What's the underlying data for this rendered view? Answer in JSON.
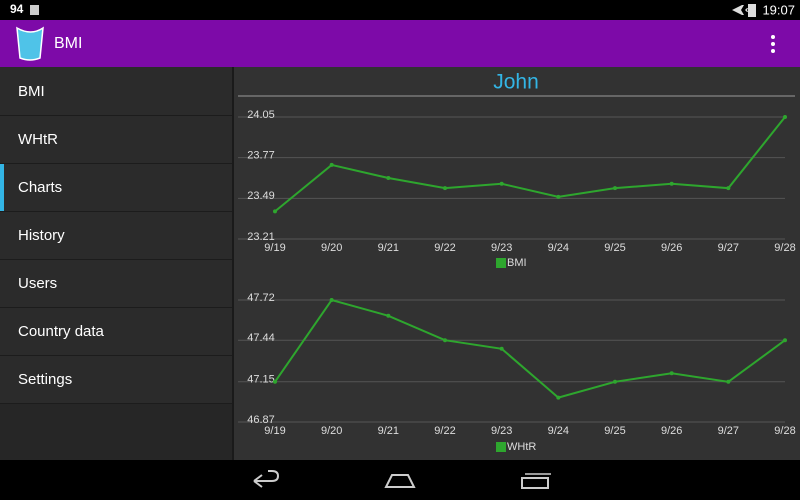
{
  "status_bar": {
    "left": "94",
    "time": "19:07"
  },
  "app_bar": {
    "title": "BMI"
  },
  "menu": {
    "items": [
      "BMI",
      "WHtR",
      "Charts",
      "History",
      "Users",
      "Country data",
      "Settings"
    ],
    "selected": 2
  },
  "header": {
    "user": "John"
  },
  "chart_data": [
    {
      "type": "line",
      "categories": [
        "9/19",
        "9/20",
        "9/21",
        "9/22",
        "9/23",
        "9/24",
        "9/25",
        "9/26",
        "9/27",
        "9/28"
      ],
      "series": [
        {
          "name": "BMI",
          "color": "#2ea62e",
          "values": [
            23.4,
            23.72,
            23.63,
            23.56,
            23.59,
            23.5,
            23.56,
            23.59,
            23.56,
            24.05
          ]
        }
      ],
      "ylim": [
        23.21,
        24.05
      ],
      "yticks": [
        23.21,
        23.49,
        23.77,
        24.05
      ],
      "grid": true
    },
    {
      "type": "line",
      "categories": [
        "9/19",
        "9/20",
        "9/21",
        "9/22",
        "9/23",
        "9/24",
        "9/25",
        "9/26",
        "9/27",
        "9/28"
      ],
      "series": [
        {
          "name": "WHtR",
          "color": "#2ea62e",
          "values": [
            47.15,
            47.72,
            47.61,
            47.44,
            47.38,
            47.04,
            47.15,
            47.21,
            47.15,
            47.44
          ]
        }
      ],
      "ylim": [
        46.87,
        47.72
      ],
      "yticks": [
        46.87,
        47.15,
        47.44,
        47.72
      ],
      "grid": true
    }
  ]
}
